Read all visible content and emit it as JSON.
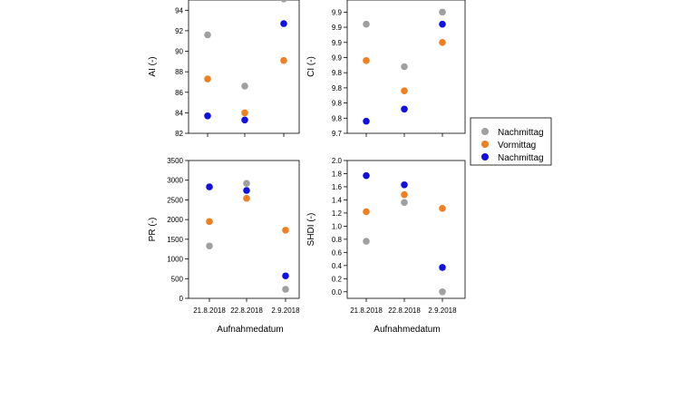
{
  "figure": {
    "xlabel_left": "Aufnahmedatum",
    "xlabel_right": "Aufnahmedatum"
  },
  "legend": {
    "entries": [
      {
        "label": "Nachmittag",
        "color": "#a0a0a0"
      },
      {
        "label": "Vormittag",
        "color": "#f07f20"
      },
      {
        "label": "Nachmittag",
        "color": "#1010e0"
      }
    ]
  },
  "chart_data": [
    {
      "type": "scatter",
      "ylabel": "AI (-)",
      "ylim": [
        82,
        95
      ],
      "yticks": [
        82,
        84,
        86,
        88,
        90,
        92,
        94
      ],
      "ytick_labels": [
        "82",
        "84",
        "86",
        "88",
        "90",
        "92",
        "94"
      ],
      "categories": [
        "21.8.2018",
        "22.8.2018",
        "2.9.2018"
      ],
      "show_xticklabels": false,
      "series": [
        {
          "name": "Nachmittag",
          "color": "#a0a0a0",
          "values": [
            91.6,
            86.6,
            95.1
          ]
        },
        {
          "name": "Vormittag",
          "color": "#f07f20",
          "values": [
            87.3,
            84.0,
            89.1
          ]
        },
        {
          "name": "Nachmittag",
          "color": "#1010e0",
          "values": [
            83.7,
            83.3,
            92.7
          ]
        }
      ]
    },
    {
      "type": "scatter",
      "ylabel": "CI (-)",
      "ylim": [
        9.7,
        9.92
      ],
      "yticks": [
        9.7,
        9.725,
        9.75,
        9.775,
        9.8,
        9.825,
        9.85,
        9.875,
        9.9
      ],
      "ytick_labels": [
        "9.7",
        "9.8",
        "9.8",
        "9.8",
        "9.8",
        "9.9",
        "9.9",
        "9.9",
        "9.9"
      ],
      "categories": [
        "21.8.2018",
        "22.8.2018",
        "2.9.2018"
      ],
      "show_xticklabels": false,
      "series": [
        {
          "name": "Nachmittag",
          "color": "#a0a0a0",
          "values": [
            9.88,
            9.81,
            9.9
          ]
        },
        {
          "name": "Vormittag",
          "color": "#f07f20",
          "values": [
            9.82,
            9.77,
            9.85
          ]
        },
        {
          "name": "Nachmittag",
          "color": "#1010e0",
          "values": [
            9.72,
            9.74,
            9.88
          ]
        }
      ]
    },
    {
      "type": "scatter",
      "ylabel": "PR (-)",
      "ylim": [
        0,
        3500
      ],
      "yticks": [
        0,
        500,
        1000,
        1500,
        2000,
        2500,
        3000,
        3500
      ],
      "ytick_labels": [
        "0",
        "500",
        "1000",
        "1500",
        "2000",
        "2500",
        "3000",
        "3500"
      ],
      "categories": [
        "21.8.2018",
        "22.8.2018",
        "2.9.2018"
      ],
      "show_xticklabels": true,
      "series": [
        {
          "name": "Nachmittag",
          "color": "#a0a0a0",
          "values": [
            1330,
            2920,
            230
          ]
        },
        {
          "name": "Vormittag",
          "color": "#f07f20",
          "values": [
            1950,
            2540,
            1730
          ]
        },
        {
          "name": "Nachmittag",
          "color": "#1010e0",
          "values": [
            2830,
            2740,
            570
          ]
        }
      ]
    },
    {
      "type": "scatter",
      "ylabel": "SHDI (-)",
      "ylim": [
        -0.1,
        2.0
      ],
      "yticks": [
        0.0,
        0.2,
        0.4,
        0.6,
        0.8,
        1.0,
        1.2,
        1.4,
        1.6,
        1.8,
        2.0
      ],
      "ytick_labels": [
        "0.0",
        "0.2",
        "0.4",
        "0.6",
        "0.8",
        "1.0",
        "1.2",
        "1.4",
        "1.6",
        "1.8",
        "2.0"
      ],
      "categories": [
        "21.8.2018",
        "22.8.2018",
        "2.9.2018"
      ],
      "show_xticklabels": true,
      "series": [
        {
          "name": "Nachmittag",
          "color": "#a0a0a0",
          "values": [
            0.77,
            1.36,
            0.0
          ]
        },
        {
          "name": "Vormittag",
          "color": "#f07f20",
          "values": [
            1.22,
            1.48,
            1.27
          ]
        },
        {
          "name": "Nachmittag",
          "color": "#1010e0",
          "values": [
            1.77,
            1.63,
            0.37
          ]
        }
      ]
    }
  ]
}
